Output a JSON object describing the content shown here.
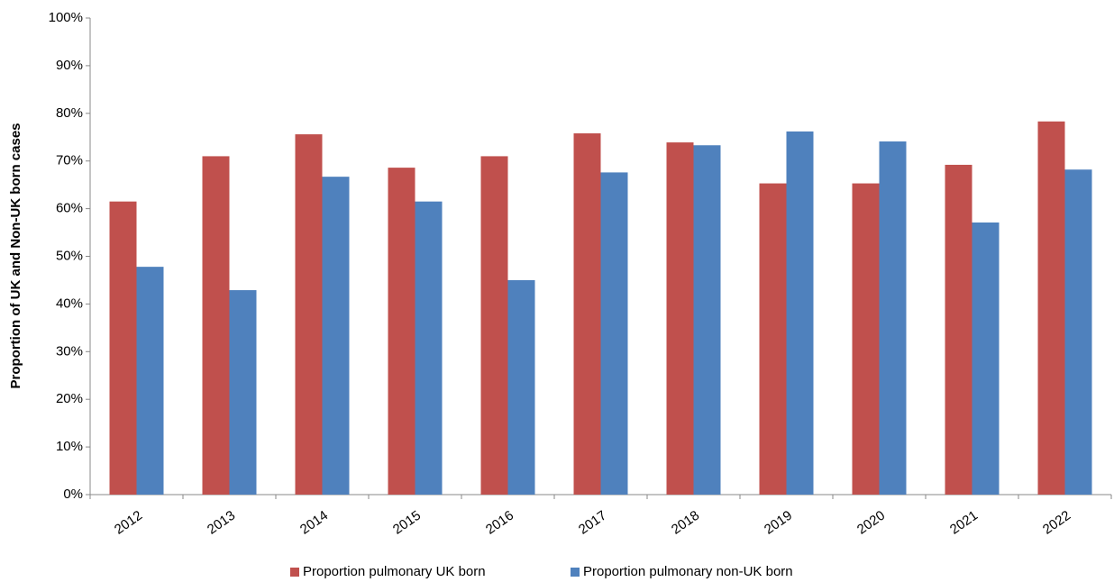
{
  "chart_data": {
    "type": "bar",
    "y_label": "Proportion of UK and Non-UK born cases",
    "categories": [
      "2012",
      "2013",
      "2014",
      "2015",
      "2016",
      "2017",
      "2018",
      "2019",
      "2020",
      "2021",
      "2022"
    ],
    "series": [
      {
        "name": "Proportion pulmonary UK born",
        "color": "#c0504d",
        "values": [
          61.5,
          71,
          75.6,
          68.6,
          71,
          75.8,
          73.9,
          65.3,
          65.3,
          69.2,
          78.3
        ]
      },
      {
        "name": "Proportion pulmonary non-UK born",
        "color": "#4f81bd",
        "values": [
          47.8,
          42.9,
          66.7,
          61.5,
          45,
          67.6,
          73.3,
          76.2,
          74.1,
          57.1,
          68.2
        ]
      }
    ],
    "ylim": [
      0,
      100
    ],
    "yticks": [
      {
        "value": 0,
        "label": "0%"
      },
      {
        "value": 10,
        "label": "10%"
      },
      {
        "value": 20,
        "label": "20%"
      },
      {
        "value": 30,
        "label": "30%"
      },
      {
        "value": 40,
        "label": "40%"
      },
      {
        "value": 50,
        "label": "50%"
      },
      {
        "value": 60,
        "label": "60%"
      },
      {
        "value": 70,
        "label": "70%"
      },
      {
        "value": 80,
        "label": "80%"
      },
      {
        "value": 90,
        "label": "90%"
      },
      {
        "value": 100,
        "label": "100%"
      }
    ],
    "grid": false,
    "legend": "bottom"
  }
}
